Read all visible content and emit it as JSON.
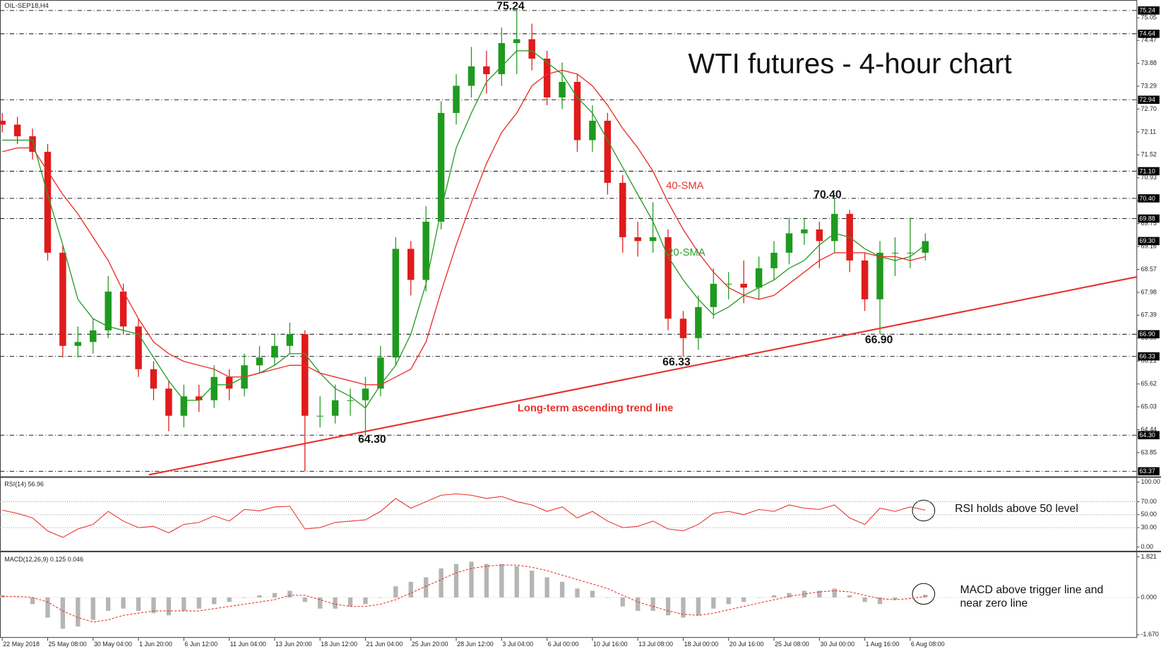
{
  "chart_data": {
    "type": "candlestick",
    "symbol": "OIL-SEP18,H4",
    "title": "WTI futures - 4-hour chart",
    "xlim": [
      -0.15,
      75
    ],
    "xticks": [
      {
        "value": 0,
        "label": "22 May 2018"
      },
      {
        "value": 3,
        "label": "25 May 08:00"
      },
      {
        "value": 6,
        "label": "30 May 04:00"
      },
      {
        "value": 9,
        "label": "1 Jun 20:00"
      },
      {
        "value": 12,
        "label": "6 Jun 12:00"
      },
      {
        "value": 15,
        "label": "11 Jun 04:00"
      },
      {
        "value": 18,
        "label": "13 Jun 20:00"
      },
      {
        "value": 21,
        "label": "18 Jun 12:00"
      },
      {
        "value": 24,
        "label": "21 Jun 04:00"
      },
      {
        "value": 27,
        "label": "25 Jun 20:00"
      },
      {
        "value": 30,
        "label": "28 Jun 12:00"
      },
      {
        "value": 33,
        "label": "3 Jul 04:00"
      },
      {
        "value": 36,
        "label": "6 Jul 00:00"
      },
      {
        "value": 39,
        "label": "10 Jul 16:00"
      },
      {
        "value": 42,
        "label": "13 Jul 08:00"
      },
      {
        "value": 45,
        "label": "18 Jul 00:00"
      },
      {
        "value": 48,
        "label": "20 Jul 16:00"
      },
      {
        "value": 51,
        "label": "25 Jul 08:00"
      },
      {
        "value": 54,
        "label": "30 Jul 00:00"
      },
      {
        "value": 57,
        "label": "1 Aug 16:00"
      },
      {
        "value": 60,
        "label": "6 Aug 08:00"
      }
    ],
    "open": [
      72.4,
      72.3,
      72.0,
      71.6,
      69.0,
      66.6,
      66.7,
      67.0,
      68.0,
      67.1,
      66.0,
      65.5,
      64.8,
      65.3,
      65.2,
      65.8,
      65.5,
      66.1,
      66.3,
      66.6,
      66.9,
      64.8,
      64.8,
      65.2,
      65.2,
      65.5,
      66.3,
      69.1,
      68.3,
      69.8,
      72.6,
      73.3,
      73.8,
      73.6,
      74.4,
      74.5,
      74.0,
      73.0,
      73.4,
      71.9,
      72.4,
      70.8,
      69.4,
      69.3,
      69.4,
      67.3,
      66.8,
      67.6,
      68.2,
      68.2,
      68.1,
      68.6,
      69.0,
      69.5,
      69.6,
      69.3,
      70.0,
      68.8,
      67.8,
      69.0,
      69.0,
      69.0
    ],
    "high": [
      72.6,
      72.5,
      72.2,
      71.8,
      69.2,
      67.1,
      67.3,
      68.4,
      68.2,
      67.3,
      66.2,
      65.7,
      65.6,
      65.6,
      66.1,
      66.0,
      66.4,
      66.6,
      66.9,
      67.2,
      67.0,
      65.3,
      65.6,
      65.5,
      65.8,
      66.6,
      69.4,
      69.3,
      70.2,
      72.9,
      73.6,
      74.3,
      74.2,
      74.8,
      75.24,
      74.9,
      74.2,
      73.9,
      73.6,
      72.8,
      72.6,
      71.0,
      69.8,
      70.3,
      69.6,
      67.5,
      67.9,
      68.6,
      68.5,
      68.8,
      68.9,
      69.3,
      69.9,
      69.9,
      69.8,
      70.4,
      70.1,
      69.0,
      69.3,
      69.4,
      69.9,
      69.5
    ],
    "low": [
      72.1,
      71.8,
      71.4,
      68.8,
      66.3,
      66.3,
      66.4,
      66.8,
      66.9,
      65.8,
      65.2,
      64.4,
      64.5,
      64.9,
      65.0,
      65.2,
      65.3,
      65.9,
      66.1,
      66.4,
      63.37,
      64.5,
      64.6,
      64.8,
      64.3,
      65.3,
      66.1,
      67.9,
      68.0,
      69.6,
      72.3,
      73.0,
      73.1,
      73.3,
      73.6,
      73.7,
      72.8,
      72.7,
      71.6,
      71.6,
      70.5,
      69.0,
      68.9,
      69.0,
      67.0,
      66.33,
      66.5,
      67.3,
      67.8,
      67.7,
      67.8,
      68.3,
      68.7,
      69.2,
      68.6,
      69.0,
      68.5,
      67.5,
      66.9,
      68.4,
      68.6,
      68.8
    ],
    "close": [
      72.3,
      72.0,
      71.6,
      69.0,
      66.6,
      66.7,
      67.0,
      68.0,
      67.1,
      66.0,
      65.5,
      64.8,
      65.3,
      65.2,
      65.8,
      65.5,
      66.1,
      66.3,
      66.6,
      66.9,
      64.8,
      64.8,
      65.2,
      65.2,
      65.5,
      66.3,
      69.1,
      68.3,
      69.8,
      72.6,
      73.3,
      73.8,
      73.6,
      74.4,
      74.5,
      74.0,
      73.0,
      73.4,
      71.9,
      72.4,
      70.8,
      69.4,
      69.3,
      69.4,
      67.3,
      66.8,
      67.6,
      68.2,
      68.2,
      68.1,
      68.6,
      69.0,
      69.5,
      69.6,
      69.3,
      70.0,
      68.8,
      67.8,
      69.0,
      69.0,
      69.0,
      69.3
    ],
    "up_color": "#1f9a1f",
    "down_color": "#e01b1b",
    "ylim": [
      63.24,
      75.51
    ],
    "yticks": [
      75.05,
      74.47,
      73.88,
      73.29,
      {
        "value": 72.7,
        "label": "72.70"
      },
      72.11,
      71.52,
      70.93,
      70.34,
      69.75,
      69.16,
      68.57,
      67.98,
      67.39,
      {
        "value": 66.8,
        "label": "66.80"
      },
      66.21,
      65.62,
      65.03,
      64.44,
      63.85
    ],
    "levels": [
      75.24,
      74.64,
      72.94,
      {
        "value": 71.1,
        "label": "71.10"
      },
      {
        "value": 70.4,
        "label": "70.40"
      },
      69.88,
      {
        "value": 66.9,
        "label": "66.90"
      },
      66.33,
      {
        "value": 64.3,
        "label": "64.30"
      },
      63.37
    ],
    "current_price": {
      "value": 69.3,
      "label": "69.30"
    },
    "series": [
      {
        "name": "20-SMA",
        "color": "#2a9d2a",
        "values": [
          71.9,
          71.9,
          71.9,
          70.5,
          69.2,
          67.8,
          67.3,
          67.1,
          67.0,
          66.9,
          66.3,
          65.7,
          65.2,
          65.2,
          65.6,
          65.6,
          65.8,
          65.9,
          66.1,
          66.4,
          66.4,
          65.9,
          65.5,
          65.3,
          65.0,
          65.6,
          66.1,
          66.9,
          68.2,
          70.1,
          71.7,
          72.6,
          73.4,
          73.8,
          74.2,
          74.2,
          73.9,
          73.6,
          73.0,
          72.6,
          71.9,
          71.2,
          70.5,
          69.8,
          68.9,
          68.3,
          67.8,
          67.4,
          67.6,
          67.9,
          68.1,
          68.3,
          68.6,
          68.8,
          69.2,
          69.5,
          69.4,
          69.1,
          68.9,
          68.8,
          68.9,
          69.2
        ]
      },
      {
        "name": "40-SMA",
        "color": "#e8302b",
        "values": [
          71.6,
          71.7,
          71.7,
          71.1,
          70.5,
          70.0,
          69.4,
          68.8,
          68.0,
          67.3,
          66.7,
          66.4,
          66.2,
          66.1,
          66.0,
          65.8,
          65.8,
          65.9,
          66.0,
          66.1,
          66.1,
          65.9,
          65.8,
          65.7,
          65.6,
          65.6,
          65.8,
          66.0,
          66.7,
          68.0,
          69.2,
          70.3,
          71.3,
          72.1,
          72.6,
          73.3,
          73.6,
          73.7,
          73.6,
          73.3,
          72.8,
          72.2,
          71.7,
          71.1,
          70.3,
          69.6,
          69.0,
          68.5,
          68.1,
          67.9,
          67.8,
          67.9,
          68.2,
          68.5,
          68.8,
          69.0,
          69.0,
          69.0,
          68.9,
          68.9,
          68.8,
          68.9
        ]
      }
    ],
    "annotations": [
      75.24,
      {
        "value": 64.3,
        "label": "64.30"
      },
      66.33,
      {
        "value": 70.4,
        "label": "70.40"
      },
      {
        "value": 66.9,
        "label": "66.90"
      }
    ],
    "trend_line": {
      "label": "Long-term ascending trend line",
      "color": "#e8302b",
      "x": [
        9.69,
        75
      ],
      "y": [
        63.28,
        68.38
      ]
    },
    "rsi": {
      "label": "RSI(14) 56.96",
      "color": "#e8302b",
      "ylim": [
        -5.7,
        105.7
      ],
      "yticks": [
        {
          "value": 100,
          "label": "100.00"
        },
        {
          "value": 70,
          "label": "70.00"
        },
        {
          "value": 50,
          "label": "50.00"
        },
        {
          "value": 30,
          "label": "30.00"
        },
        {
          "value": 0,
          "label": "0.00"
        }
      ],
      "levels": [
        70,
        50,
        30
      ],
      "values": [
        57,
        52,
        45,
        25,
        15,
        28,
        35,
        55,
        40,
        30,
        32,
        22,
        35,
        38,
        48,
        40,
        58,
        56,
        62,
        63,
        28,
        30,
        38,
        40,
        42,
        55,
        75,
        60,
        70,
        80,
        82,
        80,
        75,
        78,
        70,
        65,
        55,
        62,
        45,
        55,
        40,
        30,
        32,
        40,
        28,
        25,
        35,
        52,
        55,
        50,
        58,
        55,
        65,
        60,
        58,
        65,
        45,
        35,
        60,
        55,
        62,
        56.96
      ],
      "note": "RSI holds above 50 level"
    },
    "macd": {
      "label": "MACD(12,26,9) 0.125 0.046",
      "histogram_color": "#b5b5b5",
      "signal_color": "#e8302b",
      "ylim": [
        -1.74,
        1.99
      ],
      "yticks": [
        1.821,
        {
          "value": 0,
          "label": "0.000"
        },
        {
          "value": -1.67,
          "label": "-1.670"
        }
      ],
      "histogram": [
        0.1,
        0.0,
        -0.3,
        -0.9,
        -1.4,
        -1.3,
        -1.0,
        -0.6,
        -0.5,
        -0.6,
        -0.7,
        -0.8,
        -0.6,
        -0.5,
        -0.3,
        -0.2,
        0.0,
        0.1,
        0.2,
        0.3,
        -0.2,
        -0.5,
        -0.5,
        -0.4,
        -0.3,
        0.0,
        0.5,
        0.7,
        0.9,
        1.3,
        1.5,
        1.6,
        1.5,
        1.5,
        1.4,
        1.2,
        0.9,
        0.7,
        0.4,
        0.3,
        0.0,
        -0.4,
        -0.6,
        -0.6,
        -0.8,
        -0.9,
        -0.8,
        -0.5,
        -0.3,
        -0.2,
        0.0,
        0.1,
        0.2,
        0.3,
        0.3,
        0.4,
        0.1,
        -0.2,
        -0.3,
        -0.1,
        0.0,
        0.125
      ],
      "signal": [
        0.05,
        0.05,
        0.0,
        -0.2,
        -0.6,
        -0.9,
        -1.1,
        -1.0,
        -0.8,
        -0.7,
        -0.6,
        -0.6,
        -0.6,
        -0.6,
        -0.5,
        -0.4,
        -0.3,
        -0.2,
        -0.1,
        0.1,
        0.1,
        -0.1,
        -0.3,
        -0.4,
        -0.4,
        -0.3,
        -0.1,
        0.2,
        0.5,
        0.8,
        1.1,
        1.3,
        1.4,
        1.45,
        1.45,
        1.35,
        1.2,
        1.0,
        0.8,
        0.6,
        0.4,
        0.1,
        -0.2,
        -0.4,
        -0.6,
        -0.75,
        -0.8,
        -0.7,
        -0.55,
        -0.4,
        -0.25,
        -0.1,
        0.05,
        0.15,
        0.25,
        0.3,
        0.25,
        0.1,
        -0.05,
        -0.1,
        -0.05,
        0.046
      ],
      "note": [
        "MACD above trigger line and",
        "near zero line"
      ]
    }
  }
}
